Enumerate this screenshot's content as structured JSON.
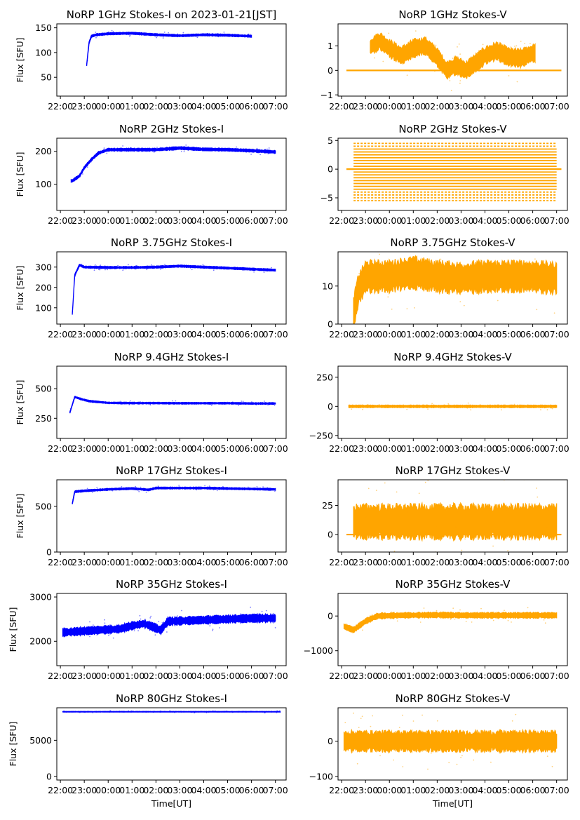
{
  "figure": {
    "x_tick_labels": [
      "22:00",
      "23:00",
      "00:00",
      "01:00",
      "02:00",
      "03:00",
      "04:00",
      "05:00",
      "06:00",
      "07:00"
    ],
    "x_label": "Time[UT]",
    "colors": {
      "stokes_i": "#0000ff",
      "stokes_v": "#ffa500"
    }
  },
  "chart_data": [
    {
      "type": "scatter",
      "title": "NoRP 1GHz Stokes-I on 2023-01-21[JST]",
      "ylabel": "Flux [SFU]",
      "color": "#0000ff",
      "xlim": [
        21.85,
        31.45
      ],
      "ylim": [
        12,
        158
      ],
      "yticks": [
        50,
        100,
        150
      ],
      "series_profile": {
        "x": [
          23.1,
          23.2,
          23.3,
          23.5,
          24.0,
          25.0,
          26.0,
          27.0,
          28.0,
          29.0,
          30.0
        ],
        "y": [
          75,
          120,
          133,
          136,
          138,
          139,
          136,
          134,
          136,
          135,
          133
        ]
      },
      "band": 2.5,
      "data_range": [
        23.1,
        30.0
      ]
    },
    {
      "type": "scatter",
      "title": "NoRP 1GHz Stokes-V",
      "ylabel": "",
      "color": "#ffa500",
      "xlim": [
        21.85,
        31.45
      ],
      "ylim": [
        -1.05,
        1.9
      ],
      "yticks": [
        -1,
        0,
        1
      ],
      "series_profile": {
        "x": [
          23.2,
          23.6,
          24.0,
          24.5,
          25.0,
          25.5,
          26.0,
          26.4,
          26.8,
          27.2,
          27.6,
          28.0,
          28.5,
          29.0,
          29.5,
          30.0
        ],
        "y": [
          0.95,
          1.2,
          0.9,
          0.6,
          0.9,
          1.0,
          0.55,
          0.0,
          0.2,
          0.0,
          0.3,
          0.6,
          0.8,
          0.55,
          0.5,
          0.7
        ]
      },
      "band": 0.4,
      "data_range": [
        23.2,
        30.1
      ],
      "baseline": 0,
      "baseline_range": [
        22.2,
        31.2
      ]
    },
    {
      "type": "scatter",
      "title": "NoRP 2GHz Stokes-I",
      "ylabel": "Flux [SFU]",
      "color": "#0000ff",
      "xlim": [
        21.85,
        31.45
      ],
      "ylim": [
        20,
        240
      ],
      "yticks": [
        100,
        200
      ],
      "series_profile": {
        "x": [
          22.5,
          22.8,
          23.0,
          23.3,
          23.6,
          24.0,
          25.0,
          26.0,
          27.0,
          28.0,
          29.0,
          30.0,
          31.0
        ],
        "y": [
          110,
          125,
          150,
          175,
          195,
          205,
          205,
          205,
          210,
          206,
          205,
          202,
          198
        ]
      },
      "band": 5,
      "data_range": [
        22.45,
        31.0
      ]
    },
    {
      "type": "scatter",
      "title": "NoRP 2GHz Stokes-V",
      "ylabel": "",
      "color": "#ffa500",
      "xlim": [
        21.85,
        31.45
      ],
      "ylim": [
        -7.2,
        5.4
      ],
      "yticks": [
        -5,
        0,
        5
      ],
      "levels": [
        -5.5,
        -5,
        -4.5,
        -4,
        -3.5,
        -3,
        -2.5,
        -2,
        -1.5,
        -1,
        -0.5,
        0,
        0.5,
        1,
        1.5,
        2,
        2.5,
        3,
        3.5,
        4,
        4.5
      ],
      "data_range": [
        22.5,
        31.0
      ],
      "baseline": 0,
      "baseline_range": [
        22.2,
        31.2
      ]
    },
    {
      "type": "scatter",
      "title": "NoRP 3.75GHz Stokes-I",
      "ylabel": "Flux [SFU]",
      "color": "#0000ff",
      "xlim": [
        21.85,
        31.45
      ],
      "ylim": [
        20,
        375
      ],
      "yticks": [
        100,
        200,
        300
      ],
      "series_profile": {
        "x": [
          22.5,
          22.6,
          22.8,
          23.0,
          24.0,
          25.0,
          26.0,
          27.0,
          28.0,
          29.0,
          30.0,
          31.0
        ],
        "y": [
          70,
          260,
          310,
          300,
          298,
          298,
          300,
          305,
          300,
          295,
          290,
          285
        ]
      },
      "band": 6,
      "data_range": [
        22.5,
        31.0
      ]
    },
    {
      "type": "scatter",
      "title": "NoRP 3.75GHz Stokes-V",
      "ylabel": "",
      "color": "#ffa500",
      "xlim": [
        21.85,
        31.45
      ],
      "ylim": [
        0,
        19
      ],
      "yticks": [
        0,
        10
      ],
      "series_profile": {
        "x": [
          22.5,
          22.7,
          23.0,
          24.0,
          25.0,
          26.0,
          27.0,
          28.0,
          29.0,
          30.0,
          31.0
        ],
        "y": [
          3,
          9,
          12.5,
          12.5,
          13.5,
          12.5,
          12.0,
          12.5,
          12.5,
          12.5,
          12.0
        ]
      },
      "band": 4.5,
      "data_range": [
        22.5,
        31.0
      ]
    },
    {
      "type": "scatter",
      "title": "NoRP 9.4GHz Stokes-I",
      "ylabel": "Flux [SFU]",
      "color": "#0000ff",
      "xlim": [
        21.85,
        31.45
      ],
      "ylim": [
        80,
        690
      ],
      "yticks": [
        250,
        500
      ],
      "series_profile": {
        "x": [
          22.4,
          22.6,
          22.9,
          23.2,
          24.0,
          25.0,
          26.0,
          27.0,
          28.0,
          29.0,
          30.0,
          31.0
        ],
        "y": [
          300,
          430,
          410,
          395,
          380,
          378,
          378,
          377,
          377,
          377,
          375,
          375
        ]
      },
      "band": 8,
      "data_range": [
        22.4,
        31.0
      ]
    },
    {
      "type": "scatter",
      "title": "NoRP 9.4GHz Stokes-V",
      "ylabel": "",
      "color": "#ffa500",
      "xlim": [
        21.85,
        31.45
      ],
      "ylim": [
        -275,
        345
      ],
      "yticks": [
        -250,
        0,
        250
      ],
      "series_profile": {
        "x": [
          22.3,
          31.0
        ],
        "y": [
          0,
          0
        ]
      },
      "band": 12,
      "data_range": [
        22.3,
        31.0
      ]
    },
    {
      "type": "scatter",
      "title": "NoRP 17GHz Stokes-I",
      "ylabel": "Flux [SFU]",
      "color": "#0000ff",
      "xlim": [
        21.85,
        31.45
      ],
      "ylim": [
        0,
        790
      ],
      "yticks": [
        0,
        500
      ],
      "series_profile": {
        "x": [
          22.5,
          22.6,
          23.0,
          24.0,
          25.0,
          25.7,
          26.0,
          27.0,
          28.0,
          29.0,
          30.0,
          31.0
        ],
        "y": [
          530,
          660,
          670,
          685,
          695,
          680,
          700,
          700,
          700,
          695,
          690,
          685
        ]
      },
      "band": 12,
      "data_range": [
        22.5,
        31.0
      ]
    },
    {
      "type": "scatter",
      "title": "NoRP 17GHz Stokes-V",
      "ylabel": "",
      "color": "#ffa500",
      "xlim": [
        21.85,
        31.45
      ],
      "ylim": [
        -15,
        47
      ],
      "yticks": [
        0,
        25
      ],
      "series_profile": {
        "x": [
          22.5,
          31.0
        ],
        "y": [
          11,
          11
        ]
      },
      "band": 16,
      "data_range": [
        22.5,
        31.0
      ],
      "baseline": 0,
      "baseline_range": [
        22.2,
        31.2
      ]
    },
    {
      "type": "scatter",
      "title": "NoRP 35GHz Stokes-I",
      "ylabel": "Flux [SFU]",
      "color": "#0000ff",
      "xlim": [
        21.85,
        31.45
      ],
      "ylim": [
        1450,
        3080
      ],
      "yticks": [
        2000,
        3000
      ],
      "series_profile": {
        "x": [
          22.1,
          23.5,
          24.5,
          25.0,
          25.5,
          26.0,
          26.2,
          26.5,
          27.0,
          28.0,
          29.0,
          30.0,
          31.0
        ],
        "y": [
          2200,
          2250,
          2280,
          2350,
          2400,
          2300,
          2250,
          2450,
          2460,
          2480,
          2500,
          2520,
          2520
        ]
      },
      "band": 100,
      "data_range": [
        22.1,
        31.0
      ]
    },
    {
      "type": "scatter",
      "title": "NoRP 35GHz Stokes-V",
      "ylabel": "",
      "color": "#ffa500",
      "xlim": [
        21.85,
        31.45
      ],
      "ylim": [
        -1430,
        650
      ],
      "yticks": [
        -1000,
        0
      ],
      "series_profile": {
        "x": [
          22.1,
          22.5,
          23.0,
          23.5,
          24.5,
          26.0,
          27.0,
          31.0
        ],
        "y": [
          -300,
          -400,
          -150,
          0,
          20,
          30,
          20,
          20
        ]
      },
      "band": 90,
      "data_range": [
        22.1,
        31.0
      ]
    },
    {
      "type": "scatter",
      "title": "NoRP 80GHz Stokes-I",
      "ylabel": "Flux [SFU]",
      "color": "#0000ff",
      "xlim": [
        21.85,
        31.45
      ],
      "ylim": [
        -500,
        9500
      ],
      "yticks": [
        0,
        5000
      ],
      "series_profile": {
        "x": [
          22.1,
          31.2
        ],
        "y": [
          8950,
          8950
        ]
      },
      "band": 60,
      "data_range": [
        22.1,
        31.2
      ]
    },
    {
      "type": "scatter",
      "title": "NoRP 80GHz Stokes-V",
      "ylabel": "",
      "color": "#ffa500",
      "xlim": [
        21.85,
        31.45
      ],
      "ylim": [
        -110,
        95
      ],
      "yticks": [
        -100,
        0
      ],
      "series_profile": {
        "x": [
          22.1,
          31.0
        ],
        "y": [
          0,
          0
        ]
      },
      "band": 32,
      "data_range": [
        22.1,
        31.0
      ]
    }
  ]
}
